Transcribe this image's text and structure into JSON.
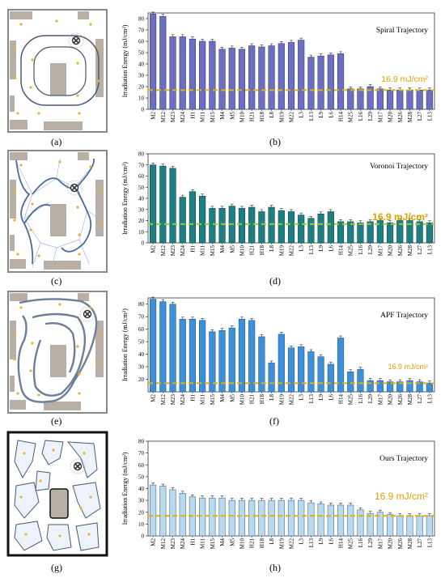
{
  "panel_labels": [
    "(a)",
    "(b)",
    "(c)",
    "(d)",
    "(e)",
    "(f)",
    "(g)",
    "(h)"
  ],
  "colors": {
    "threshold": "#e5b000",
    "threshold_green": "#9acd32",
    "frame": "#555555",
    "obstacle": "#b8b0a6",
    "point": "#f0b030"
  },
  "chart_data": [
    {
      "type": "bar",
      "title": "Spiral Trajectory",
      "ylabel": "Irradiation Energy (mJ/cm²)",
      "threshold_label": "16.9 mJ/cm²",
      "threshold": 16.9,
      "ylim": [
        0,
        85
      ],
      "yticks": [
        0,
        10,
        20,
        30,
        40,
        50,
        60,
        70,
        80
      ],
      "categories": [
        "M2",
        "M12",
        "M23",
        "M24",
        "H1",
        "M11",
        "M15",
        "M4",
        "M5",
        "M10",
        "H21",
        "H18",
        "L8",
        "M19",
        "M22",
        "L3",
        "L13",
        "L9",
        "L6",
        "H14",
        "M25",
        "L16",
        "L29",
        "M17",
        "M20",
        "M26",
        "M28",
        "L27",
        "L13"
      ],
      "values": [
        84,
        82,
        64,
        64,
        62,
        60,
        60,
        53,
        54,
        53,
        56,
        55,
        56,
        58,
        59,
        61,
        46,
        47,
        48,
        49,
        18,
        18,
        20,
        18,
        17,
        17,
        17,
        17,
        17
      ],
      "bar_color": "#6b6fc0",
      "bar_edge": "#3a3d7a"
    },
    {
      "type": "bar",
      "title": "Voronoi Trajectory",
      "ylabel": "Irradiation Energy (mJ/cm²)",
      "threshold_label": "16.9 mJ/cm²",
      "threshold": 16.9,
      "ylim": [
        0,
        80
      ],
      "yticks": [
        0,
        10,
        20,
        30,
        40,
        50,
        60,
        70,
        80
      ],
      "categories": [
        "M2",
        "M12",
        "M23",
        "M24",
        "H1",
        "M11",
        "M15",
        "M4",
        "M5",
        "M10",
        "H21",
        "H18",
        "L8",
        "M19",
        "M22",
        "L3",
        "L13",
        "L9",
        "L6",
        "H14",
        "M25",
        "L16",
        "L29",
        "M17",
        "M20",
        "M26",
        "M28",
        "L27",
        "L13"
      ],
      "values": [
        70,
        69,
        67,
        41,
        46,
        42,
        31,
        31,
        33,
        31,
        32,
        28,
        32,
        29,
        28,
        25,
        22,
        26,
        28,
        19,
        19,
        18,
        19,
        20,
        18,
        20,
        20,
        19,
        18
      ],
      "bar_color": "#1e7f82",
      "bar_edge": "#0d4a4c"
    },
    {
      "type": "bar",
      "title": "APF Trajectory",
      "ylabel": "Irradiation Energy (mJ/cm²)",
      "threshold_label": "16.9 mJ/cm²",
      "threshold": 16.9,
      "ylim": [
        10,
        85
      ],
      "yticks": [
        20,
        30,
        40,
        50,
        60,
        70,
        80
      ],
      "categories": [
        "M2",
        "M12",
        "M23",
        "M24",
        "H1",
        "M11",
        "M15",
        "M4",
        "M5",
        "M10",
        "H21",
        "H18",
        "L8",
        "M19",
        "M22",
        "L3",
        "L13",
        "L9",
        "L6",
        "H14",
        "M25",
        "L16",
        "L29",
        "M17",
        "M20",
        "M26",
        "M28",
        "L27",
        "L13"
      ],
      "values": [
        84,
        82,
        80,
        68,
        68,
        67,
        58,
        59,
        61,
        68,
        67,
        54,
        33,
        56,
        45,
        46,
        42,
        38,
        32,
        53,
        26,
        28,
        19,
        19,
        18,
        18,
        19,
        18,
        17
      ],
      "bar_color": "#3d8fd8",
      "bar_edge": "#1f5d9a"
    },
    {
      "type": "bar",
      "title": "Ours Trajectory",
      "ylabel": "Irradiation Energy (mJ/cm²)",
      "threshold_label": "16.9 mJ/cm²",
      "threshold": 16.9,
      "ylim": [
        0,
        80
      ],
      "yticks": [
        0,
        10,
        20,
        30,
        40,
        50,
        60,
        70,
        80
      ],
      "categories": [
        "M2",
        "M12",
        "M23",
        "M24",
        "H1",
        "M11",
        "M15",
        "M4",
        "M5",
        "M10",
        "H21",
        "H18",
        "L8",
        "M19",
        "M22",
        "L3",
        "L13",
        "L9",
        "L6",
        "H14",
        "M25",
        "L16",
        "L29",
        "M17",
        "M20",
        "M26",
        "M28",
        "L27",
        "L13"
      ],
      "values": [
        43,
        42,
        39,
        36,
        33,
        32,
        32,
        32,
        30,
        30,
        30,
        30,
        30,
        30,
        30,
        30,
        28,
        27,
        26,
        26,
        26,
        22,
        19,
        20,
        18,
        17,
        17,
        17,
        17
      ],
      "bar_color": "#b9d9ef",
      "bar_edge": "#4a6f88"
    }
  ]
}
